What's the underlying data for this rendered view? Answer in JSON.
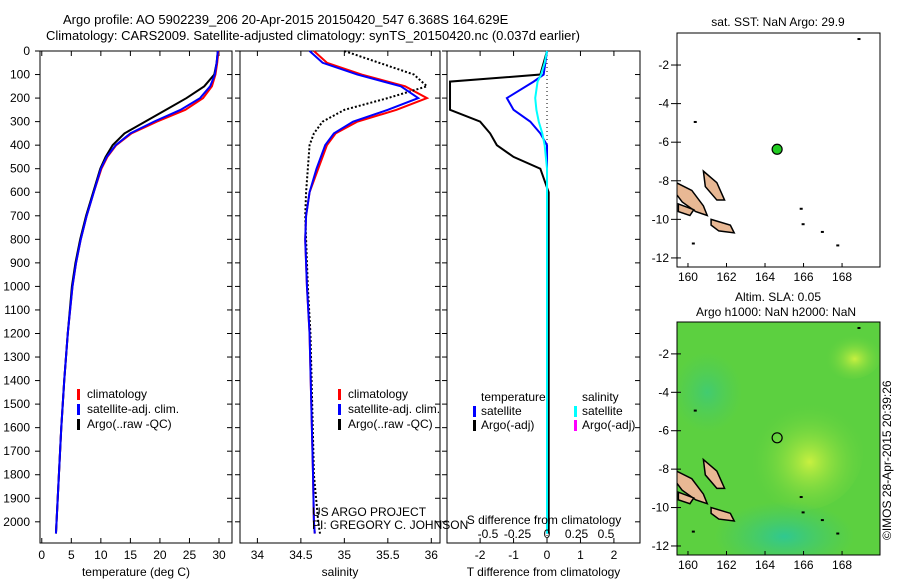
{
  "title": {
    "line1": "Argo profile: AO 5902239_206 20-Apr-2015 20150420_547 6.368S 164.629E",
    "line2": "Climatology: CARS2009. Satellite-adjusted climatology: synTS_20150420.nc (0.037d earlier)"
  },
  "colors": {
    "clim": "#ff0000",
    "sat": "#0000ff",
    "argo": "#000000",
    "sat_s": "#00ffff",
    "argo_s": "#ff00ff",
    "land": "#e8b894"
  },
  "chart_data": [
    {
      "type": "line",
      "id": "temperature",
      "xlabel": "temperature (deg C)",
      "ylabel": "",
      "xlim": [
        -0.3,
        32.2
      ],
      "ylim": [
        0,
        2090
      ],
      "xticks": [
        0,
        5,
        10,
        15,
        20,
        25,
        30
      ],
      "yticks": [
        0,
        100,
        200,
        300,
        400,
        500,
        600,
        700,
        800,
        900,
        1000,
        1100,
        1200,
        1300,
        1400,
        1500,
        1600,
        1700,
        1800,
        1900,
        2000
      ],
      "legend": [
        "climatology",
        "satellite-adj. clim.",
        "Argo(..raw -QC)"
      ],
      "depth": [
        0,
        50,
        100,
        150,
        200,
        250,
        300,
        350,
        400,
        450,
        500,
        600,
        700,
        800,
        900,
        1000,
        1200,
        1400,
        1600,
        1800,
        2000,
        2050
      ],
      "series": [
        {
          "name": "climatology",
          "values": [
            29.9,
            29.7,
            29.4,
            28.8,
            27.3,
            24.3,
            19.5,
            15.2,
            12.6,
            11.1,
            10.1,
            8.8,
            7.6,
            6.6,
            5.8,
            5.2,
            4.4,
            3.8,
            3.3,
            2.9,
            2.5,
            2.4
          ]
        },
        {
          "name": "satellite-adj. clim.",
          "values": [
            29.8,
            29.6,
            29.3,
            28.5,
            26.8,
            23.5,
            19.0,
            15.0,
            12.5,
            11.0,
            10.0,
            8.8,
            7.6,
            6.6,
            5.8,
            5.2,
            4.4,
            3.8,
            3.3,
            2.9,
            2.5,
            2.4
          ]
        },
        {
          "name": "Argo(..raw -QC)",
          "values": [
            29.8,
            29.6,
            29.2,
            27.5,
            24.5,
            21.0,
            17.5,
            14.0,
            12.0,
            10.8,
            9.9,
            8.7,
            7.5,
            6.5,
            5.7,
            5.1,
            4.4,
            3.8,
            3.3,
            2.9,
            2.5,
            2.4
          ]
        }
      ]
    },
    {
      "type": "line",
      "id": "salinity",
      "xlabel": "salinity",
      "xlim": [
        33.8,
        36.1
      ],
      "ylim": [
        0,
        2090
      ],
      "xticks": [
        34,
        34.5,
        35,
        35.5,
        36
      ],
      "legend": [
        "climatology",
        "satellite-adj. clim.",
        "Argo(..raw -QC)"
      ],
      "annotation": [
        "US ARGO PROJECT",
        "PI: GREGORY C. JOHNSON"
      ],
      "depth": [
        0,
        50,
        100,
        150,
        200,
        250,
        300,
        350,
        400,
        500,
        600,
        700,
        800,
        1000,
        1200,
        1500,
        1800,
        2000,
        2050
      ],
      "series": [
        {
          "name": "climatology",
          "values": [
            34.65,
            34.8,
            35.2,
            35.7,
            35.95,
            35.6,
            35.15,
            34.9,
            34.8,
            34.7,
            34.6,
            34.56,
            34.55,
            34.57,
            34.6,
            34.62,
            34.64,
            34.65,
            34.66
          ]
        },
        {
          "name": "satellite-adj. clim.",
          "values": [
            34.6,
            34.75,
            35.15,
            35.65,
            35.85,
            35.5,
            35.1,
            34.88,
            34.78,
            34.68,
            34.6,
            34.56,
            34.55,
            34.57,
            34.6,
            34.62,
            34.64,
            34.65,
            34.66
          ]
        },
        {
          "name": "Argo(..raw -QC)",
          "values": [
            35.0,
            35.4,
            35.8,
            35.95,
            35.5,
            35.0,
            34.75,
            34.65,
            34.6,
            34.58,
            34.56,
            34.55,
            34.56,
            34.58,
            34.61,
            34.63,
            34.65,
            34.7,
            34.72
          ]
        }
      ]
    },
    {
      "type": "line",
      "id": "difference",
      "xlabel": "T difference from climatology",
      "x2label": "S difference from climatology",
      "xlim": [
        -2.99,
        2.78
      ],
      "ylim": [
        0,
        2090
      ],
      "xticks": [
        -2,
        -1,
        0,
        1,
        2
      ],
      "x2ticks": [
        -0.5,
        -0.25,
        0,
        0.25,
        0.5
      ],
      "legend": {
        "temperature": [
          "temperature",
          "satellite",
          "Argo(-adj)"
        ],
        "salinity": [
          "salinity",
          "satellite",
          "Argo(-adj)"
        ]
      },
      "depth": [
        0,
        50,
        100,
        130,
        200,
        250,
        300,
        350,
        400,
        450,
        500,
        600,
        800,
        1000,
        1500,
        2000,
        2050
      ],
      "series": [
        {
          "name": "T satellite",
          "values": [
            0,
            -0.05,
            -0.1,
            -0.4,
            -1.2,
            -1.0,
            -0.5,
            -0.2,
            0,
            0,
            0,
            0,
            0,
            0,
            0,
            0,
            0
          ]
        },
        {
          "name": "T Argo(-adj)",
          "values": [
            0,
            -0.1,
            -0.2,
            -2.9,
            -2.9,
            -2.9,
            -2.0,
            -1.7,
            -1.5,
            -1.0,
            -0.2,
            0.05,
            0.05,
            0.05,
            0.05,
            0.05,
            0.05
          ]
        },
        {
          "name": "S satellite",
          "values": [
            0,
            -0.02,
            -0.05,
            -0.08,
            -0.1,
            -0.09,
            -0.07,
            -0.04,
            -0.02,
            -0.01,
            0,
            0,
            0,
            0,
            0,
            0,
            0
          ]
        }
      ]
    },
    {
      "type": "scatter",
      "id": "sst-map",
      "title": "sat. SST: NaN Argo: 29.9",
      "xlim": [
        159.43,
        169.97
      ],
      "ylim": [
        -12.47,
        -0.34
      ],
      "xticks": [
        160,
        162,
        164,
        166,
        168
      ],
      "yticks": [
        -2,
        -4,
        -6,
        -8,
        -10,
        -12
      ],
      "point": {
        "lon": 164.629,
        "lat": -6.368
      }
    },
    {
      "type": "heatmap",
      "id": "sla-map",
      "title": "Altim. SLA: 0.05",
      "subtitle": "Argo h1000: NaN h2000: NaN",
      "xlim": [
        159.43,
        169.97
      ],
      "ylim": [
        -12.47,
        -0.34
      ],
      "xticks": [
        160,
        162,
        164,
        166,
        168
      ],
      "yticks": [
        -2,
        -4,
        -6,
        -8,
        -10,
        -12
      ],
      "point": {
        "lon": 164.629,
        "lat": -6.368
      }
    }
  ],
  "credit": "©IMOS 28-Apr-2015 20:39:26"
}
